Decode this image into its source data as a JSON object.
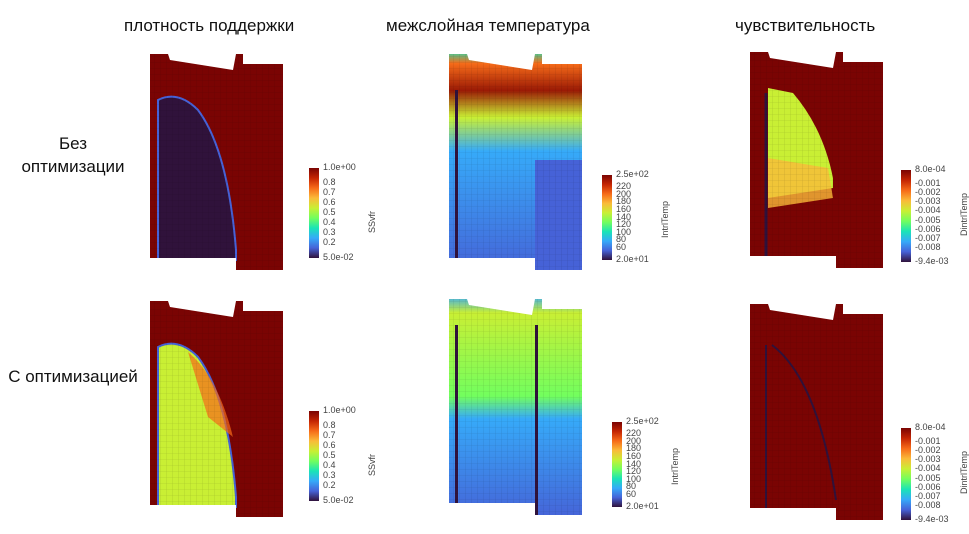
{
  "columns": [
    "плотность поддержки",
    "межслойная температура",
    "чувствительность"
  ],
  "rows": [
    "Без оптимизации",
    "С оптимизацией"
  ],
  "colorbars": {
    "density": {
      "title": "SSvfr",
      "ticks": [
        "1.0e+00",
        "0.8",
        "0.7",
        "0.6",
        "0.5",
        "0.4",
        "0.3",
        "0.2",
        "5.0e-02"
      ]
    },
    "temperature": {
      "title": "IntrlTemp",
      "ticks": [
        "2.5e+02",
        "220",
        "200",
        "180",
        "160",
        "140",
        "120",
        "100",
        "80",
        "60",
        "2.0e+01"
      ]
    },
    "sensitivity": {
      "title": "DintrlTemp",
      "ticks": [
        "8.0e-04",
        "-0.001",
        "-0.002",
        "-0.003",
        "-0.004",
        "-0.005",
        "-0.006",
        "-0.007",
        "-0.008",
        "-9.4e-03"
      ]
    }
  },
  "colormap": [
    "#30123b",
    "#4662d7",
    "#36aaf9",
    "#1ae4b6",
    "#72fe5e",
    "#c9ef34",
    "#faba39",
    "#f66b19",
    "#c42503",
    "#7a0403"
  ]
}
